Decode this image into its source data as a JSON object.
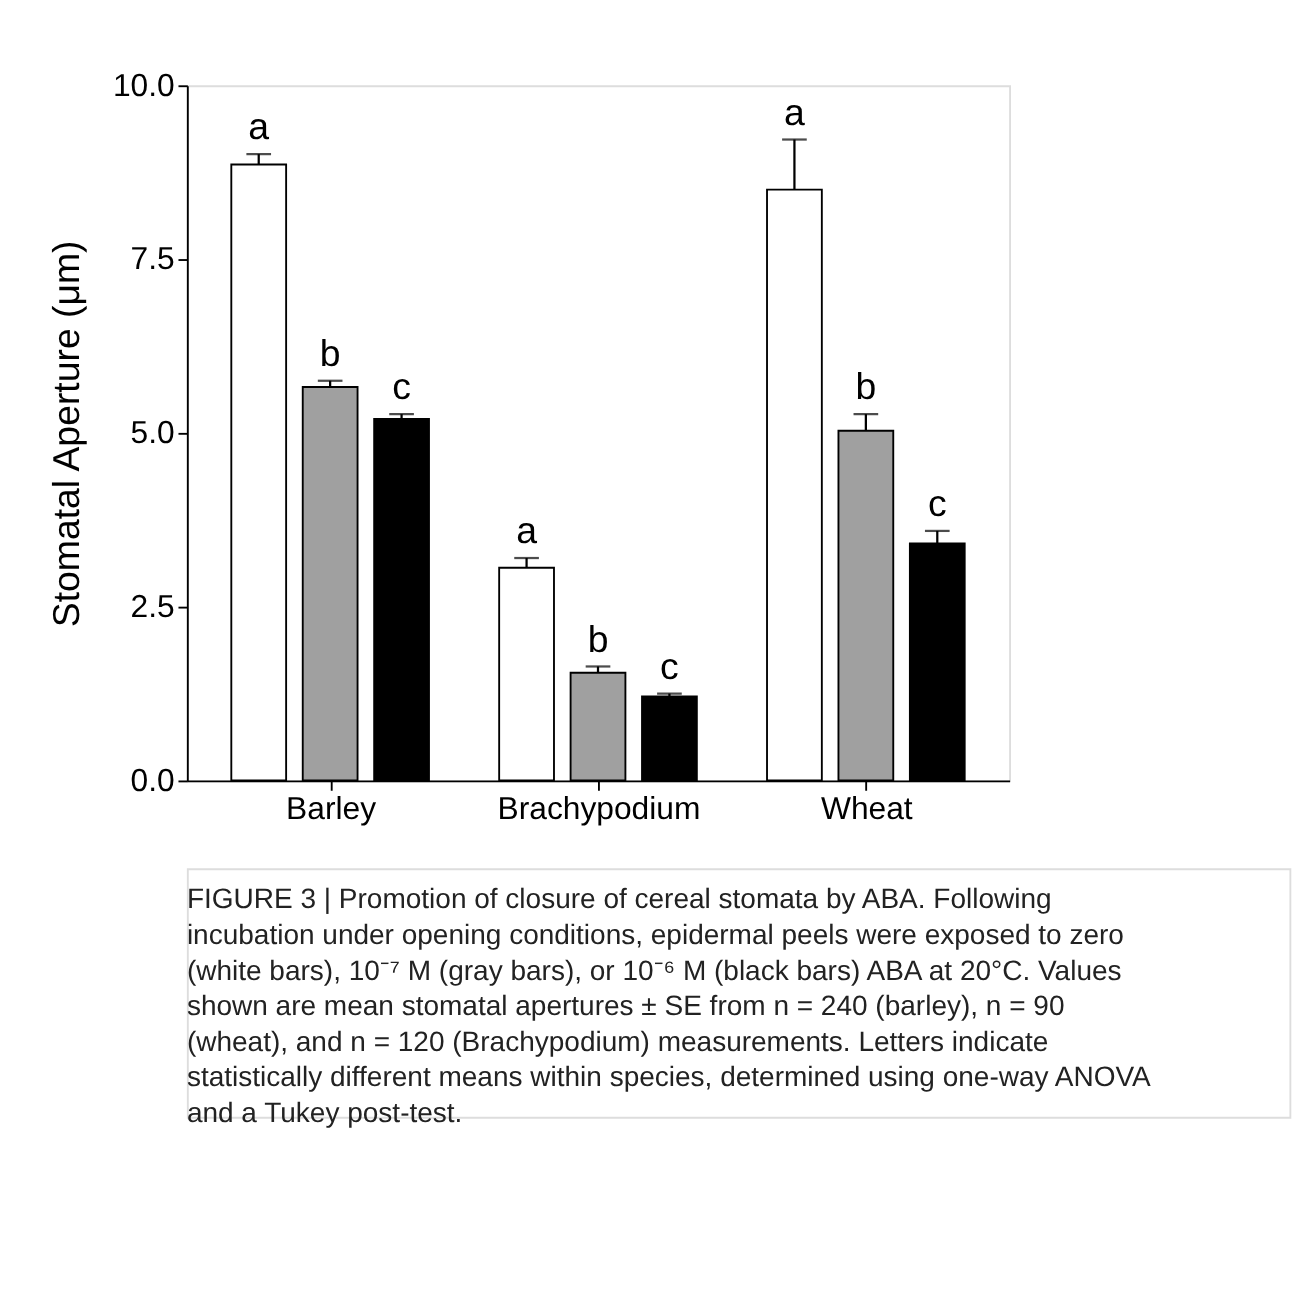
{
  "chart_data": {
    "type": "bar",
    "ylabel": "Stomatal Aperture (μm)",
    "categories": [
      "Barley",
      "Brachypodium",
      "Wheat"
    ],
    "series": [
      {
        "color": "#ffffff",
        "values": [
          8.86,
          3.06,
          8.5
        ],
        "errors": [
          0.15,
          0.14,
          0.72
        ],
        "value_labels": [
          "a",
          "a",
          "a"
        ]
      },
      {
        "color": "#a0a0a0",
        "values": [
          5.66,
          1.55,
          5.03
        ],
        "errors": [
          0.09,
          0.09,
          0.24
        ],
        "value_labels": [
          "b",
          "b",
          "b"
        ]
      },
      {
        "color": "#000000",
        "values": [
          5.2,
          1.21,
          3.41
        ],
        "errors": [
          0.07,
          0.04,
          0.18
        ],
        "value_labels": [
          "c",
          "c",
          "c"
        ]
      }
    ],
    "ylim": [
      0,
      10
    ],
    "yticks": [
      {
        "value": 0,
        "label": "0.0"
      },
      {
        "value": 2.5,
        "label": "2.5"
      },
      {
        "value": 5,
        "label": "5.0"
      },
      {
        "value": 7.5,
        "label": "7.5"
      },
      {
        "value": 10,
        "label": "10.0"
      }
    ],
    "grid": false,
    "annotations": [
      "FIGURE 3 | Promotion of closure of cereal stomata by ABA. Following incubation under opening conditions, epidermal peels were exposed to zero (white bars), 10⁻⁷ M (gray bars), or 10⁻⁶ M (black bars) ABA at 20°C. Values shown are mean stomatal apertures ± SE from n = 240 (barley), n = 90 (wheat), and n = 120 (Brachypodium) measurements. Letters indicate statistically different means within species, determined using one-way ANOVA and a Tukey post-test."
    ]
  }
}
